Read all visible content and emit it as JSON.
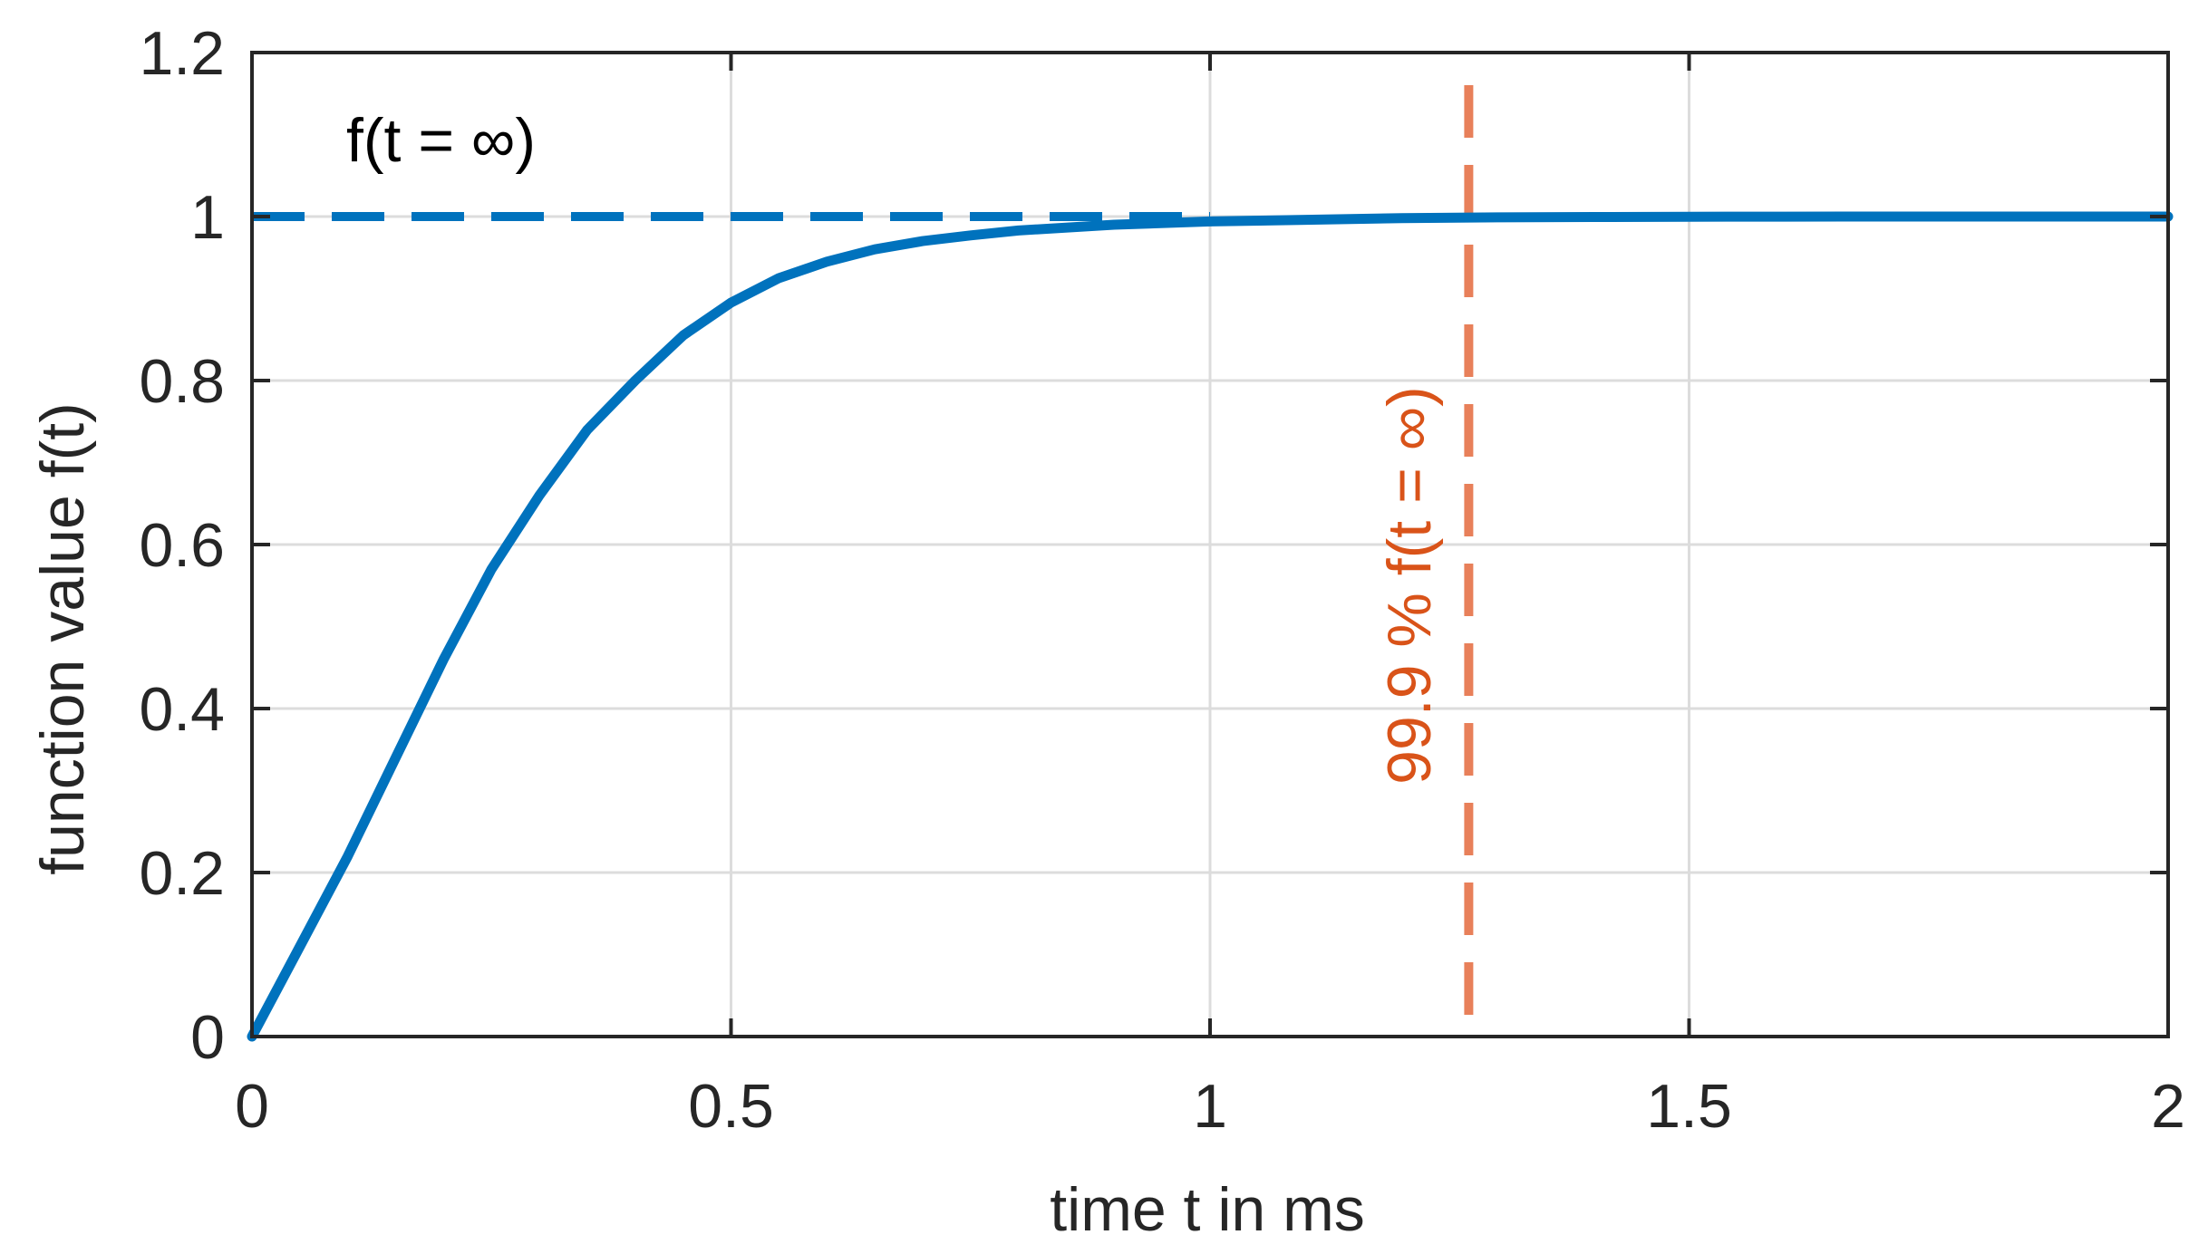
{
  "chart_data": {
    "type": "line",
    "xlabel": "time t in ms",
    "ylabel": "function value f(t)",
    "xlim": [
      0,
      2
    ],
    "ylim": [
      0,
      1.2
    ],
    "x_ticks": [
      0,
      0.5,
      1,
      1.5,
      2
    ],
    "x_tick_labels": [
      "0",
      "0.5",
      "1",
      "1.5",
      "2"
    ],
    "y_ticks": [
      0,
      0.2,
      0.4,
      0.6,
      0.8,
      1,
      1.2
    ],
    "y_tick_labels": [
      "0",
      "0.2",
      "0.4",
      "0.6",
      "0.8",
      "1",
      "1.2"
    ],
    "grid": true,
    "series": [
      {
        "x": [
          0,
          0.05,
          0.1,
          0.15,
          0.2,
          0.25,
          0.3,
          0.35,
          0.4,
          0.45,
          0.5,
          0.55,
          0.6,
          0.65,
          0.7,
          0.75,
          0.8,
          0.9,
          1.0,
          1.1,
          1.2,
          1.3,
          1.4,
          1.5,
          1.6,
          1.7,
          1.8,
          1.9,
          2.0
        ],
        "y": [
          0,
          0.11,
          0.22,
          0.34,
          0.46,
          0.57,
          0.66,
          0.74,
          0.8,
          0.855,
          0.895,
          0.925,
          0.945,
          0.96,
          0.97,
          0.977,
          0.983,
          0.99,
          0.994,
          0.996,
          0.998,
          0.999,
          0.9995,
          0.9998,
          0.9999,
          1.0,
          1.0,
          1.0,
          1.0
        ],
        "color": "#0072BD",
        "style": "solid"
      }
    ],
    "reference_lines": [
      {
        "orientation": "horizontal",
        "y": 1,
        "x_range": [
          0,
          1.0
        ],
        "color": "#0072BD",
        "style": "dashed",
        "label": "f(t = ∞)"
      },
      {
        "orientation": "vertical",
        "x": 1.27,
        "color": "#E8805A",
        "style": "dashed",
        "label": "99.9 % f(t = ∞)",
        "label_color": "#D95319"
      }
    ]
  }
}
